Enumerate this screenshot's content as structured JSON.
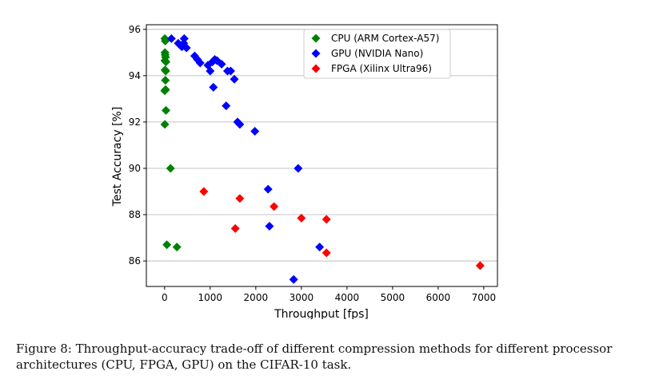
{
  "chart_data": {
    "type": "scatter",
    "xlabel": "Throughput [fps]",
    "ylabel": "Test Accuracy [%]",
    "xlim": [
      -400,
      7300
    ],
    "ylim": [
      84.9,
      96.2
    ],
    "xticks": [
      0,
      1000,
      2000,
      3000,
      4000,
      5000,
      6000,
      7000
    ],
    "yticks": [
      86,
      88,
      90,
      92,
      94,
      96
    ],
    "grid": "horizontal",
    "legend_position": "top-right",
    "marker": "diamond",
    "series": [
      {
        "name": "CPU (ARM Cortex-A57)",
        "color": "#008000",
        "points": [
          [
            5,
            95.6
          ],
          [
            15,
            95.5
          ],
          [
            8,
            95.0
          ],
          [
            12,
            94.9
          ],
          [
            20,
            94.8
          ],
          [
            6,
            94.65
          ],
          [
            30,
            94.6
          ],
          [
            10,
            94.25
          ],
          [
            25,
            94.2
          ],
          [
            18,
            93.8
          ],
          [
            3,
            93.35
          ],
          [
            22,
            93.4
          ],
          [
            30,
            92.5
          ],
          [
            5,
            91.9
          ],
          [
            130,
            90.0
          ],
          [
            50,
            86.7
          ],
          [
            270,
            86.6
          ]
        ]
      },
      {
        "name": "GPU (NVIDIA Nano)",
        "color": "#0000ff",
        "points": [
          [
            150,
            95.6
          ],
          [
            300,
            95.4
          ],
          [
            350,
            95.3
          ],
          [
            420,
            95.4
          ],
          [
            430,
            95.6
          ],
          [
            380,
            95.25
          ],
          [
            480,
            95.2
          ],
          [
            660,
            94.85
          ],
          [
            720,
            94.7
          ],
          [
            780,
            94.55
          ],
          [
            950,
            94.45
          ],
          [
            1000,
            94.2
          ],
          [
            1050,
            94.6
          ],
          [
            1100,
            94.7
          ],
          [
            1150,
            94.65
          ],
          [
            1250,
            94.5
          ],
          [
            1380,
            94.2
          ],
          [
            1450,
            94.2
          ],
          [
            1530,
            93.85
          ],
          [
            1070,
            93.5
          ],
          [
            1350,
            92.7
          ],
          [
            1600,
            92.0
          ],
          [
            1650,
            91.9
          ],
          [
            1980,
            91.6
          ],
          [
            2930,
            90.0
          ],
          [
            2270,
            89.1
          ],
          [
            2300,
            87.5
          ],
          [
            3400,
            86.6
          ],
          [
            2830,
            85.2
          ]
        ]
      },
      {
        "name": "FPGA (Xilinx Ultra96)",
        "color": "#ff0000",
        "points": [
          [
            860,
            89.0
          ],
          [
            1650,
            88.7
          ],
          [
            2400,
            88.35
          ],
          [
            3000,
            87.85
          ],
          [
            3550,
            87.8
          ],
          [
            1550,
            87.4
          ],
          [
            3550,
            86.35
          ],
          [
            6920,
            85.8
          ]
        ]
      }
    ]
  },
  "caption": "Figure 8:  Throughput-accuracy trade-off of different compression methods for different processor architectures (CPU, FPGA, GPU) on the CIFAR-10 task."
}
